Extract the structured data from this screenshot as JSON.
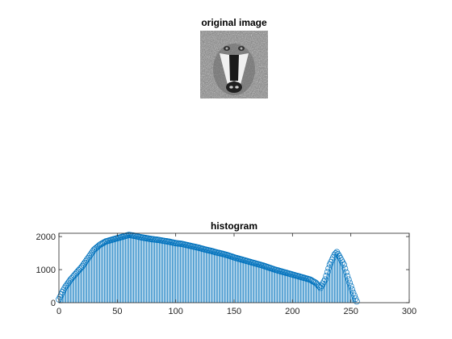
{
  "figure": {
    "image_title": "original image",
    "hist_title": "histogram"
  },
  "chart_data": {
    "type": "stem",
    "title": "histogram",
    "xlabel": "",
    "ylabel": "",
    "xlim": [
      0,
      300
    ],
    "ylim": [
      0,
      2100
    ],
    "xticks": [
      0,
      50,
      100,
      150,
      200,
      250,
      300
    ],
    "yticks": [
      0,
      1000,
      2000
    ],
    "grid": false,
    "series_color": "#0072BD",
    "x_range": [
      0,
      255
    ],
    "anchors": [
      [
        0,
        100
      ],
      [
        2,
        250
      ],
      [
        5,
        450
      ],
      [
        10,
        700
      ],
      [
        15,
        900
      ],
      [
        20,
        1100
      ],
      [
        25,
        1350
      ],
      [
        30,
        1600
      ],
      [
        35,
        1750
      ],
      [
        40,
        1850
      ],
      [
        45,
        1900
      ],
      [
        50,
        1950
      ],
      [
        55,
        2000
      ],
      [
        60,
        2050
      ],
      [
        65,
        2020
      ],
      [
        70,
        1980
      ],
      [
        75,
        1950
      ],
      [
        80,
        1920
      ],
      [
        85,
        1900
      ],
      [
        90,
        1870
      ],
      [
        95,
        1840
      ],
      [
        100,
        1800
      ],
      [
        105,
        1780
      ],
      [
        110,
        1740
      ],
      [
        115,
        1700
      ],
      [
        120,
        1660
      ],
      [
        125,
        1610
      ],
      [
        130,
        1570
      ],
      [
        135,
        1520
      ],
      [
        140,
        1480
      ],
      [
        145,
        1430
      ],
      [
        150,
        1370
      ],
      [
        155,
        1320
      ],
      [
        160,
        1270
      ],
      [
        165,
        1220
      ],
      [
        170,
        1170
      ],
      [
        175,
        1120
      ],
      [
        180,
        1060
      ],
      [
        185,
        1000
      ],
      [
        190,
        950
      ],
      [
        195,
        900
      ],
      [
        200,
        850
      ],
      [
        205,
        800
      ],
      [
        210,
        750
      ],
      [
        215,
        700
      ],
      [
        220,
        600
      ],
      [
        224,
        450
      ],
      [
        228,
        700
      ],
      [
        232,
        1150
      ],
      [
        236,
        1450
      ],
      [
        238,
        1530
      ],
      [
        241,
        1350
      ],
      [
        244,
        1150
      ],
      [
        247,
        800
      ],
      [
        250,
        500
      ],
      [
        252,
        300
      ],
      [
        254,
        120
      ],
      [
        255,
        40
      ]
    ]
  }
}
